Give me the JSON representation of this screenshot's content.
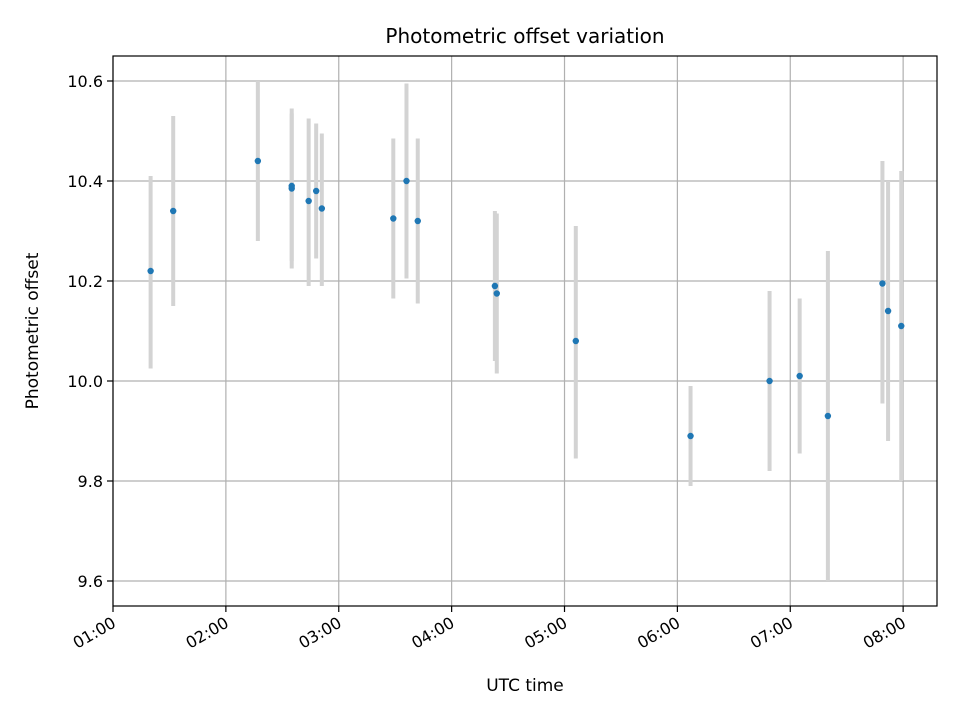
{
  "chart_data": {
    "type": "scatter",
    "title": "Photometric offset variation",
    "xlabel": "UTC time",
    "ylabel": "Photometric offset",
    "xlim": [
      "01:00",
      "08:18"
    ],
    "ylim": [
      9.55,
      10.65
    ],
    "x_ticks": [
      "01:00",
      "02:00",
      "03:00",
      "04:00",
      "05:00",
      "06:00",
      "07:00",
      "08:00"
    ],
    "y_ticks": [
      9.6,
      9.8,
      10.0,
      10.2,
      10.4,
      10.6
    ],
    "grid": true,
    "point_color": "#1f77b4",
    "errorbar_color": "#d3d3d3",
    "points": [
      {
        "t": "01:20",
        "y": 10.22,
        "lo": 10.025,
        "hi": 10.41
      },
      {
        "t": "01:32",
        "y": 10.34,
        "lo": 10.15,
        "hi": 10.53
      },
      {
        "t": "02:17",
        "y": 10.44,
        "lo": 10.28,
        "hi": 10.6
      },
      {
        "t": "02:35",
        "y": 10.385,
        "lo": 10.225,
        "hi": 10.545
      },
      {
        "t": "02:35",
        "y": 10.39,
        "lo": 10.24,
        "hi": 10.535
      },
      {
        "t": "02:44",
        "y": 10.36,
        "lo": 10.19,
        "hi": 10.525
      },
      {
        "t": "02:48",
        "y": 10.38,
        "lo": 10.245,
        "hi": 10.515
      },
      {
        "t": "02:51",
        "y": 10.345,
        "lo": 10.19,
        "hi": 10.495
      },
      {
        "t": "03:29",
        "y": 10.325,
        "lo": 10.165,
        "hi": 10.485
      },
      {
        "t": "03:36",
        "y": 10.4,
        "lo": 10.205,
        "hi": 10.595
      },
      {
        "t": "03:42",
        "y": 10.32,
        "lo": 10.155,
        "hi": 10.485
      },
      {
        "t": "04:23",
        "y": 10.19,
        "lo": 10.04,
        "hi": 10.34
      },
      {
        "t": "04:24",
        "y": 10.175,
        "lo": 10.015,
        "hi": 10.335
      },
      {
        "t": "05:06",
        "y": 10.08,
        "lo": 9.845,
        "hi": 10.31
      },
      {
        "t": "06:07",
        "y": 9.89,
        "lo": 9.79,
        "hi": 9.99
      },
      {
        "t": "06:49",
        "y": 10.0,
        "lo": 9.82,
        "hi": 10.18
      },
      {
        "t": "07:05",
        "y": 10.01,
        "lo": 9.855,
        "hi": 10.165
      },
      {
        "t": "07:20",
        "y": 9.93,
        "lo": 9.6,
        "hi": 10.26
      },
      {
        "t": "07:49",
        "y": 10.195,
        "lo": 9.955,
        "hi": 10.44
      },
      {
        "t": "07:52",
        "y": 10.14,
        "lo": 9.88,
        "hi": 10.4
      },
      {
        "t": "07:59",
        "y": 10.11,
        "lo": 9.8,
        "hi": 10.42
      }
    ]
  }
}
